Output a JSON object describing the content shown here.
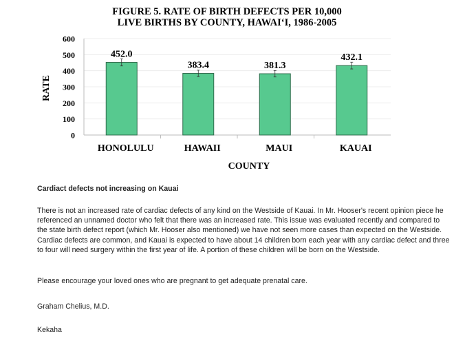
{
  "chart_data": {
    "type": "bar",
    "title": [
      "FIGURE 5.  RATE OF BIRTH DEFECTS PER 10,000",
      "LIVE BIRTHS BY COUNTY, HAWAI‘I, 1986-2005"
    ],
    "categories": [
      "HONOLULU",
      "HAWAII",
      "MAUI",
      "KAUAI"
    ],
    "values": [
      452.0,
      383.4,
      381.3,
      432.1
    ],
    "data_labels": [
      "452.0",
      "383.4",
      "381.3",
      "432.1"
    ],
    "error_bars": [
      22,
      20,
      20,
      21
    ],
    "xlabel": "COUNTY",
    "ylabel": "RATE",
    "ylim": [
      0,
      600
    ],
    "yticks": [
      "0",
      "100",
      "200",
      "300",
      "400",
      "500",
      "600"
    ],
    "grid": true,
    "bar_color": "#57c98f"
  },
  "article": {
    "heading": "Cardiact defects not increasing on Kauai",
    "paragraph": "There is not an increased rate of cardiac defects of any kind on the Westside of Kauai. In Mr. Hooser's recent opinion piece he referenced an unnamed doctor who felt that there was an increased rate. This issue was evaluated recently and compared to the state birth defect report (which Mr. Hooser also mentioned) we have not seen more cases than expected on the Westside. Cardiac defects are common, and Kauai is expected to have about 14 children born each year with any cardiac defect and three to four will need surgery within the first year of life. A portion of these children will be born on the Westside.",
    "plea": "Please encourage your loved ones who are pregnant to get adequate prenatal care.",
    "author": "Graham Chelius, M.D.",
    "location": "Kekaha"
  }
}
